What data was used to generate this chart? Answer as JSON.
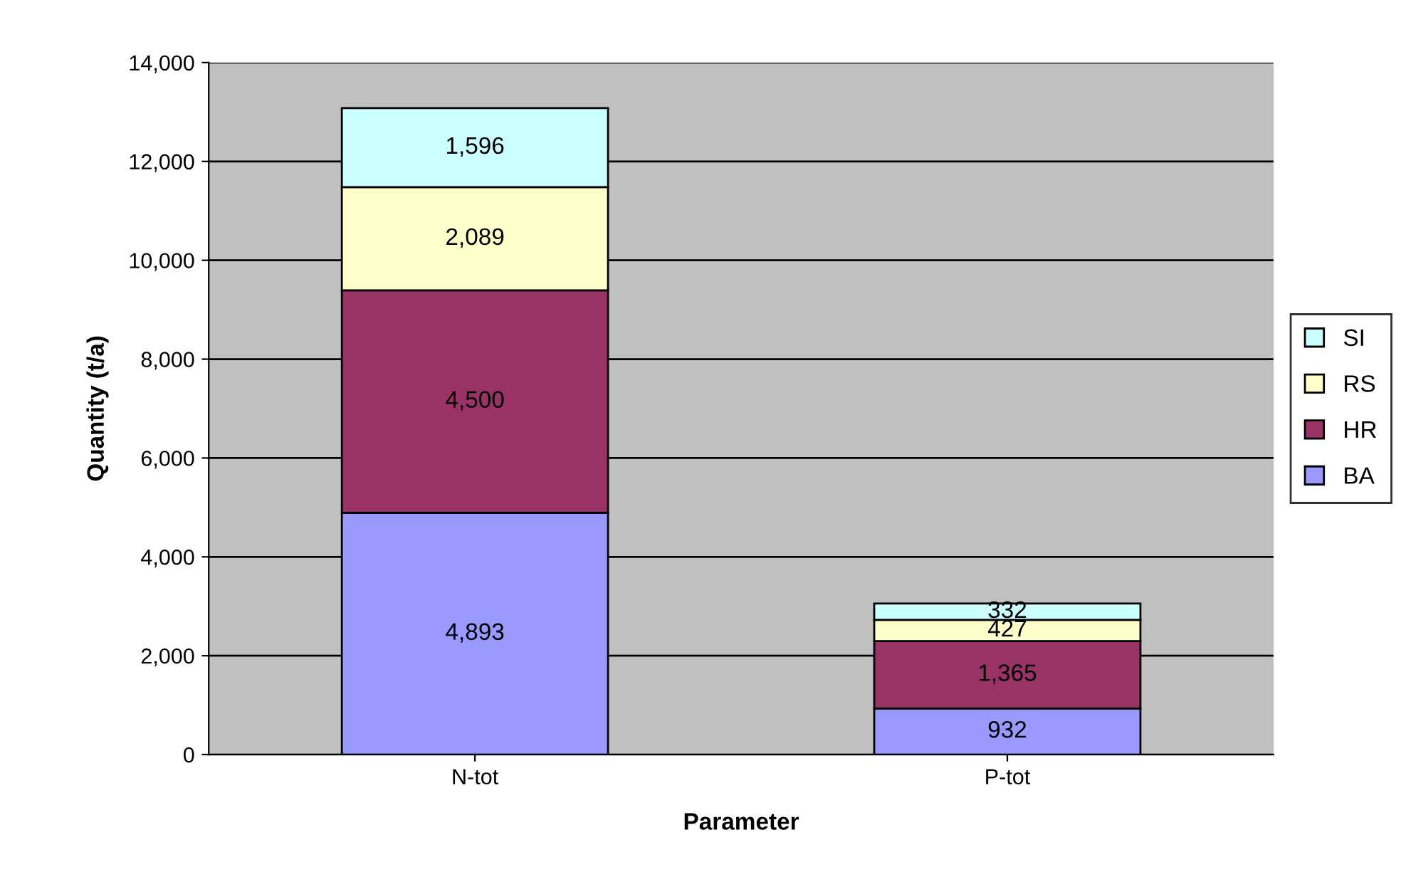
{
  "chart_data": {
    "type": "bar",
    "stacked": true,
    "xlabel": "Parameter",
    "ylabel": "Quantity (t/a)",
    "categories": [
      "N-tot",
      "P-tot"
    ],
    "series": [
      {
        "name": "BA",
        "color": "#9999ff",
        "values": [
          4893,
          932
        ],
        "value_labels": [
          "4,893",
          "932"
        ]
      },
      {
        "name": "HR",
        "color": "#993366",
        "values": [
          4500,
          1365
        ],
        "value_labels": [
          "4,500",
          "1,365"
        ]
      },
      {
        "name": "RS",
        "color": "#ffffcc",
        "values": [
          2089,
          427
        ],
        "value_labels": [
          "2,089",
          "427"
        ]
      },
      {
        "name": "SI",
        "color": "#ccffff",
        "values": [
          1596,
          332
        ],
        "value_labels": [
          "1,596",
          "332"
        ]
      }
    ],
    "ylim": [
      0,
      14000
    ],
    "yticks": [
      {
        "value": 0,
        "label": "0"
      },
      {
        "value": 2000,
        "label": "2,000"
      },
      {
        "value": 4000,
        "label": "4,000"
      },
      {
        "value": 6000,
        "label": "6,000"
      },
      {
        "value": 8000,
        "label": "8,000"
      },
      {
        "value": 10000,
        "label": "10,000"
      },
      {
        "value": 12000,
        "label": "12,000"
      },
      {
        "value": 14000,
        "label": "14,000"
      }
    ],
    "grid": "y",
    "legend": "right"
  }
}
